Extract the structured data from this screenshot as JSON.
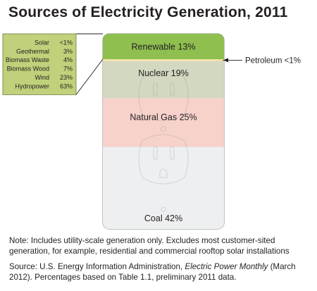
{
  "chart_data": {
    "type": "stacked-bar",
    "title": "Sources of Electricity Generation, 2011",
    "unit": "%",
    "segments": [
      {
        "label": "Renewable 13%",
        "name": "Renewable",
        "value": 13,
        "color": "#8fbf4f"
      },
      {
        "label": "Petroleum <1%",
        "name": "Petroleum",
        "value": 1,
        "color": "#f3e4a6"
      },
      {
        "label": "Nuclear 19%",
        "name": "Nuclear",
        "value": 19,
        "color": "#d3d8c1"
      },
      {
        "label": "Natural Gas 25%",
        "name": "Natural Gas",
        "value": 25,
        "color": "#f6d2cb"
      },
      {
        "label": "Coal 42%",
        "name": "Coal",
        "value": 42,
        "color": "#eeeff0"
      }
    ],
    "renewable_breakdown": [
      {
        "name": "Solar",
        "label": "<1%",
        "value": 1
      },
      {
        "name": "Geothermal",
        "label": "3%",
        "value": 3
      },
      {
        "name": "Biomass Waste",
        "label": "4%",
        "value": 4
      },
      {
        "name": "Biomass Wood",
        "label": "7%",
        "value": 7
      },
      {
        "name": "Wind",
        "label": "23%",
        "value": 23
      },
      {
        "name": "Hydropower",
        "label": "63%",
        "value": 63
      }
    ],
    "breakdown_color": "#bfd17a"
  },
  "note": "Note: Includes utility-scale generation only. Excludes most customer-sited generation, for example, residential and commercial rooftop solar installations",
  "source": {
    "prefix": "Source: U.S. Energy Information Administration,",
    "publication": "Electric Power Monthly",
    "suffix": "(March 2012). Percentages based on Table 1.1, preliminary 2011 data."
  }
}
